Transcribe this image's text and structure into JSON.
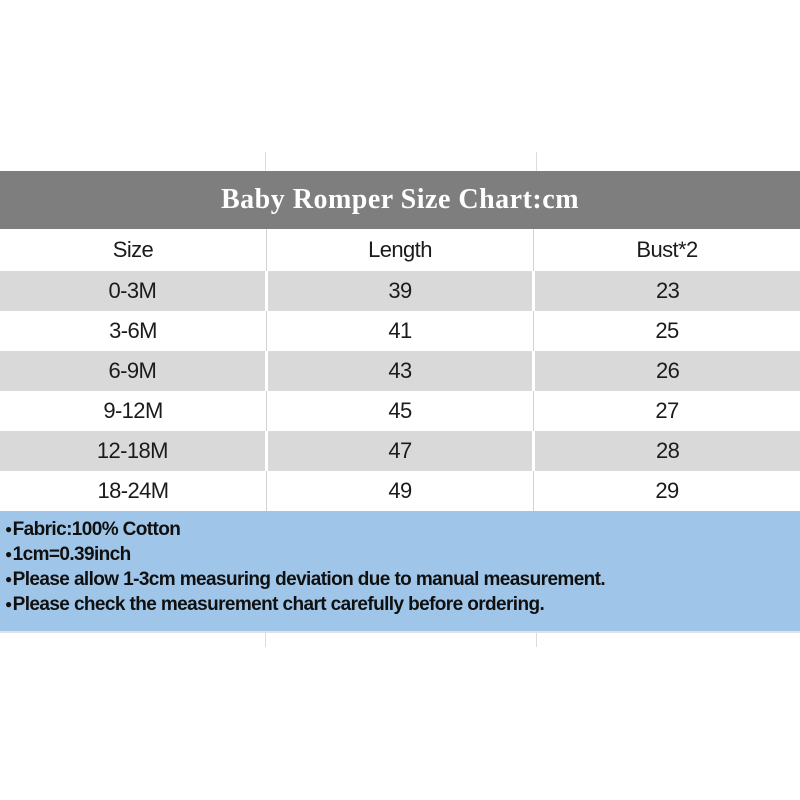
{
  "chart_data": {
    "type": "table",
    "title": "Baby Romper Size Chart:cm",
    "columns": [
      "Size",
      "Length",
      "Bust*2"
    ],
    "rows": [
      [
        "0-3M",
        39,
        23
      ],
      [
        "3-6M",
        41,
        25
      ],
      [
        "6-9M",
        43,
        26
      ],
      [
        "9-12M",
        45,
        27
      ],
      [
        "12-18M",
        47,
        28
      ],
      [
        "18-24M",
        49,
        29
      ]
    ],
    "notes": [
      "Fabric:100% Cotton",
      "1cm=0.39inch",
      "Please allow 1-3cm measuring deviation due to manual measurement.",
      "Please check the measurement chart carefully before ordering."
    ]
  },
  "notes_bullet": "●",
  "colors": {
    "title_bar_bg": "#7e7e7e",
    "title_text": "#ffffff",
    "alt_row_bg": "#d9d9d9",
    "notes_bg": "#9fc5e8",
    "table_text": "#1b1b1b"
  }
}
